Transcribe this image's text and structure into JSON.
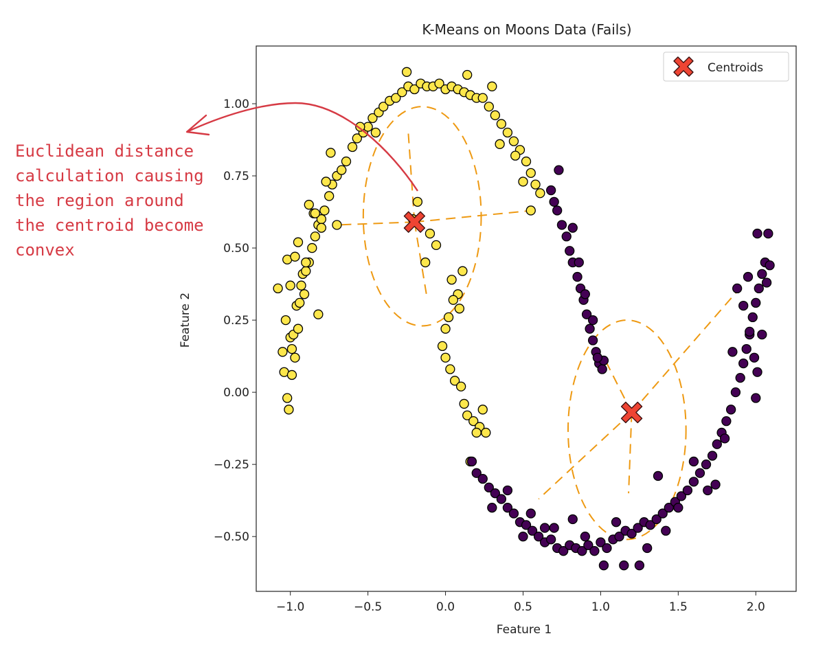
{
  "chart_data": {
    "type": "scatter",
    "title": "K-Means on Moons Data (Fails)",
    "xlabel": "Feature 1",
    "ylabel": "Feature 2",
    "xlim": [
      -1.22,
      2.26
    ],
    "ylim": [
      -0.69,
      1.2
    ],
    "x_ticks": [
      -1.0,
      -0.5,
      0.0,
      0.5,
      1.0,
      1.5,
      2.0
    ],
    "x_tick_labels": [
      "−1.0",
      "−0.5",
      "0.0",
      "0.5",
      "1.0",
      "1.5",
      "2.0"
    ],
    "y_ticks": [
      -0.5,
      -0.25,
      0.0,
      0.25,
      0.5,
      0.75,
      1.0
    ],
    "y_tick_labels": [
      "−0.50",
      "−0.25",
      "0.00",
      "0.25",
      "0.50",
      "0.75",
      "1.00"
    ],
    "grid": false,
    "legend": {
      "placement": "top-right",
      "entries": [
        "Centroids"
      ]
    },
    "colors": {
      "cluster_0": "#fde74c",
      "cluster_1": "#440154",
      "point_edge": "#000000",
      "centroid": "#ee4433",
      "guides": "#ee9911",
      "annotation": "#d63a44"
    },
    "series": [
      {
        "cluster": 0,
        "points": [
          [
            -1.08,
            0.36
          ],
          [
            -1.05,
            0.14
          ],
          [
            -1.04,
            0.07
          ],
          [
            -1.02,
            0.46
          ],
          [
            -1.02,
            -0.02
          ],
          [
            -1.01,
            -0.06
          ],
          [
            -1.0,
            0.19
          ],
          [
            -1.0,
            0.37
          ],
          [
            -0.98,
            0.2
          ],
          [
            -0.97,
            0.47
          ],
          [
            -0.96,
            0.3
          ],
          [
            -0.95,
            0.22
          ],
          [
            -0.94,
            0.31
          ],
          [
            -0.93,
            0.37
          ],
          [
            -0.92,
            0.41
          ],
          [
            -0.91,
            0.34
          ],
          [
            -0.9,
            0.42
          ],
          [
            -0.88,
            0.45
          ],
          [
            -0.86,
            0.5
          ],
          [
            -0.84,
            0.54
          ],
          [
            -0.82,
            0.58
          ],
          [
            -0.8,
            0.6
          ],
          [
            -0.78,
            0.63
          ],
          [
            -0.75,
            0.68
          ],
          [
            -0.73,
            0.72
          ],
          [
            -0.7,
            0.75
          ],
          [
            -0.67,
            0.77
          ],
          [
            -0.64,
            0.8
          ],
          [
            -0.6,
            0.85
          ],
          [
            -0.57,
            0.88
          ],
          [
            -0.53,
            0.9
          ],
          [
            -0.5,
            0.92
          ],
          [
            -0.47,
            0.95
          ],
          [
            -0.43,
            0.97
          ],
          [
            -0.4,
            0.99
          ],
          [
            -0.36,
            1.01
          ],
          [
            -0.32,
            1.02
          ],
          [
            -0.28,
            1.04
          ],
          [
            -0.24,
            1.06
          ],
          [
            -0.2,
            1.05
          ],
          [
            -0.16,
            1.07
          ],
          [
            -0.12,
            1.06
          ],
          [
            -0.08,
            1.06
          ],
          [
            -0.04,
            1.07
          ],
          [
            0.0,
            1.05
          ],
          [
            0.04,
            1.06
          ],
          [
            0.08,
            1.05
          ],
          [
            0.12,
            1.04
          ],
          [
            0.16,
            1.03
          ],
          [
            0.2,
            1.02
          ],
          [
            0.24,
            1.02
          ],
          [
            0.28,
            0.99
          ],
          [
            0.32,
            0.96
          ],
          [
            0.36,
            0.93
          ],
          [
            0.4,
            0.9
          ],
          [
            0.44,
            0.87
          ],
          [
            0.48,
            0.84
          ],
          [
            0.52,
            0.8
          ],
          [
            0.55,
            0.76
          ],
          [
            0.58,
            0.72
          ],
          [
            0.61,
            0.69
          ],
          [
            -0.88,
            0.65
          ],
          [
            -0.85,
            0.62
          ],
          [
            -0.8,
            0.57
          ],
          [
            -0.95,
            0.52
          ],
          [
            -0.97,
            0.12
          ],
          [
            -1.03,
            0.25
          ],
          [
            -0.99,
            0.06
          ],
          [
            -0.99,
            0.15
          ],
          [
            -0.9,
            0.45
          ],
          [
            -0.84,
            0.62
          ],
          [
            -0.77,
            0.73
          ],
          [
            -0.55,
            0.92
          ],
          [
            -0.45,
            0.9
          ],
          [
            -0.25,
            1.11
          ],
          [
            0.14,
            1.1
          ],
          [
            0.3,
            1.06
          ],
          [
            0.35,
            0.86
          ],
          [
            0.45,
            0.82
          ],
          [
            0.5,
            0.73
          ],
          [
            0.11,
            0.42
          ],
          [
            0.08,
            0.34
          ],
          [
            0.05,
            0.32
          ],
          [
            0.02,
            0.26
          ],
          [
            0.0,
            0.22
          ],
          [
            -0.02,
            0.16
          ],
          [
            0.0,
            0.12
          ],
          [
            0.03,
            0.08
          ],
          [
            0.06,
            0.04
          ],
          [
            0.1,
            0.02
          ],
          [
            0.12,
            -0.04
          ],
          [
            0.14,
            -0.08
          ],
          [
            0.18,
            -0.1
          ],
          [
            0.22,
            -0.12
          ],
          [
            0.24,
            -0.06
          ],
          [
            0.26,
            -0.14
          ],
          [
            0.2,
            -0.14
          ],
          [
            0.16,
            -0.24
          ],
          [
            -0.1,
            0.55
          ],
          [
            -0.06,
            0.51
          ],
          [
            0.04,
            0.39
          ],
          [
            0.09,
            0.29
          ],
          [
            -0.13,
            0.45
          ],
          [
            -0.18,
            0.66
          ],
          [
            -0.21,
            0.6
          ],
          [
            0.55,
            0.63
          ],
          [
            -0.7,
            0.58
          ],
          [
            -0.82,
            0.27
          ],
          [
            -0.74,
            0.83
          ]
        ]
      },
      {
        "cluster": 1,
        "points": [
          [
            0.68,
            0.7
          ],
          [
            0.7,
            0.66
          ],
          [
            0.72,
            0.63
          ],
          [
            0.75,
            0.58
          ],
          [
            0.78,
            0.54
          ],
          [
            0.8,
            0.49
          ],
          [
            0.82,
            0.45
          ],
          [
            0.85,
            0.4
          ],
          [
            0.87,
            0.36
          ],
          [
            0.89,
            0.32
          ],
          [
            0.91,
            0.27
          ],
          [
            0.93,
            0.22
          ],
          [
            0.95,
            0.18
          ],
          [
            0.97,
            0.14
          ],
          [
            0.99,
            0.1
          ],
          [
            1.01,
            0.08
          ],
          [
            0.82,
            0.57
          ],
          [
            0.86,
            0.45
          ],
          [
            0.9,
            0.34
          ],
          [
            0.95,
            0.25
          ],
          [
            0.17,
            -0.24
          ],
          [
            0.2,
            -0.28
          ],
          [
            0.24,
            -0.3
          ],
          [
            0.28,
            -0.33
          ],
          [
            0.32,
            -0.35
          ],
          [
            0.36,
            -0.37
          ],
          [
            0.4,
            -0.4
          ],
          [
            0.44,
            -0.42
          ],
          [
            0.48,
            -0.45
          ],
          [
            0.52,
            -0.46
          ],
          [
            0.56,
            -0.48
          ],
          [
            0.6,
            -0.5
          ],
          [
            0.64,
            -0.52
          ],
          [
            0.68,
            -0.51
          ],
          [
            0.72,
            -0.54
          ],
          [
            0.76,
            -0.55
          ],
          [
            0.8,
            -0.53
          ],
          [
            0.84,
            -0.54
          ],
          [
            0.88,
            -0.55
          ],
          [
            0.92,
            -0.53
          ],
          [
            0.96,
            -0.55
          ],
          [
            1.0,
            -0.52
          ],
          [
            1.04,
            -0.54
          ],
          [
            1.08,
            -0.51
          ],
          [
            1.12,
            -0.5
          ],
          [
            1.16,
            -0.48
          ],
          [
            1.2,
            -0.49
          ],
          [
            1.24,
            -0.47
          ],
          [
            1.28,
            -0.45
          ],
          [
            1.32,
            -0.46
          ],
          [
            1.36,
            -0.44
          ],
          [
            1.4,
            -0.42
          ],
          [
            1.44,
            -0.4
          ],
          [
            1.48,
            -0.38
          ],
          [
            1.52,
            -0.36
          ],
          [
            1.56,
            -0.34
          ],
          [
            1.6,
            -0.31
          ],
          [
            1.64,
            -0.28
          ],
          [
            1.68,
            -0.25
          ],
          [
            1.72,
            -0.22
          ],
          [
            1.75,
            -0.18
          ],
          [
            1.78,
            -0.14
          ],
          [
            1.81,
            -0.1
          ],
          [
            1.84,
            -0.06
          ],
          [
            1.87,
            0.0
          ],
          [
            1.9,
            0.05
          ],
          [
            1.92,
            0.1
          ],
          [
            1.94,
            0.15
          ],
          [
            1.96,
            0.2
          ],
          [
            1.98,
            0.26
          ],
          [
            2.0,
            0.31
          ],
          [
            2.02,
            0.36
          ],
          [
            2.04,
            0.41
          ],
          [
            2.06,
            0.45
          ],
          [
            2.08,
            0.55
          ],
          [
            2.01,
            0.55
          ],
          [
            1.95,
            0.4
          ],
          [
            1.99,
            0.12
          ],
          [
            2.0,
            -0.02
          ],
          [
            1.88,
            0.36
          ],
          [
            0.73,
            0.77
          ],
          [
            1.02,
            -0.6
          ],
          [
            0.9,
            -0.5
          ],
          [
            0.5,
            -0.5
          ],
          [
            1.15,
            -0.6
          ],
          [
            1.25,
            -0.6
          ],
          [
            1.42,
            -0.48
          ],
          [
            1.37,
            -0.29
          ],
          [
            1.74,
            -0.32
          ],
          [
            1.6,
            -0.24
          ],
          [
            1.96,
            0.21
          ],
          [
            2.01,
            0.07
          ],
          [
            1.02,
            0.11
          ],
          [
            0.98,
            0.12
          ],
          [
            0.3,
            -0.4
          ],
          [
            0.55,
            -0.42
          ],
          [
            0.7,
            -0.47
          ],
          [
            0.82,
            -0.44
          ],
          [
            1.1,
            -0.45
          ],
          [
            1.3,
            -0.54
          ],
          [
            1.5,
            -0.4
          ],
          [
            1.69,
            -0.34
          ],
          [
            1.8,
            -0.16
          ],
          [
            2.07,
            0.38
          ],
          [
            2.09,
            0.44
          ],
          [
            0.64,
            -0.47
          ],
          [
            0.4,
            -0.34
          ],
          [
            1.92,
            0.3
          ],
          [
            1.85,
            0.14
          ],
          [
            2.04,
            0.2
          ]
        ]
      }
    ],
    "centroids": [
      [
        -0.2,
        0.59
      ],
      [
        1.2,
        -0.07
      ]
    ],
    "annotation": {
      "lines": [
        "Euclidean distance",
        "calculation causing",
        "the region around",
        "the centroid become",
        "convex"
      ]
    }
  }
}
